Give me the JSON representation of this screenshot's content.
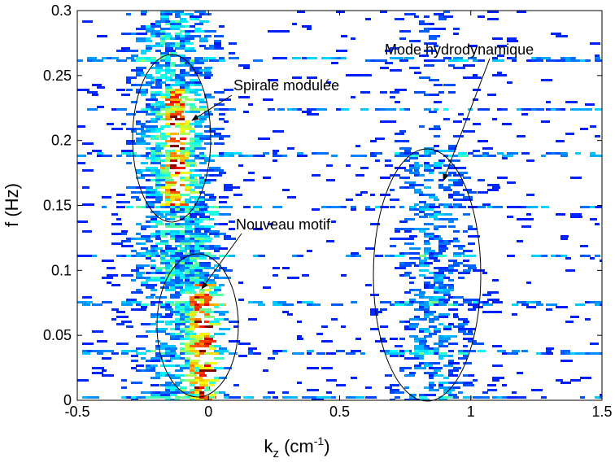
{
  "chart_data": {
    "type": "heatmap",
    "xlabel": [
      "k",
      "z",
      " (cm",
      "-1",
      ")"
    ],
    "ylabel": "f (Hz)",
    "xlim": [
      -0.5,
      1.5
    ],
    "ylim": [
      0,
      0.3
    ],
    "xticks": [
      -0.5,
      0,
      0.5,
      1,
      1.5
    ],
    "yticks": [
      0,
      0.05,
      0.1,
      0.15,
      0.2,
      0.25,
      0.3
    ],
    "annotations": [
      "Spirale modulée",
      "Nouveau motif",
      "Mode hydrodynamique"
    ]
  }
}
